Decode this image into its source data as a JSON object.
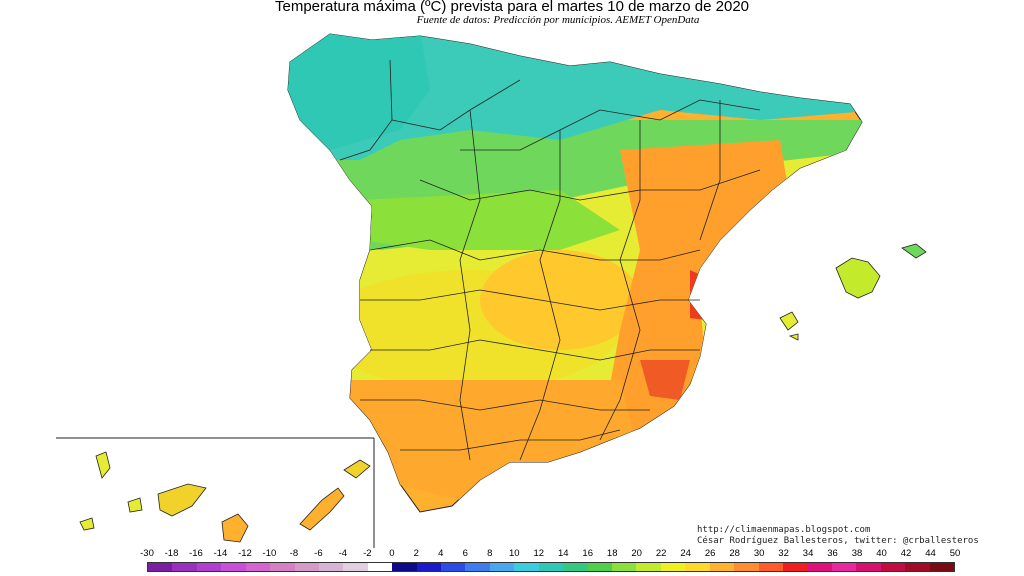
{
  "map": {
    "title": "Temperatura máxima (ºC) prevista para el martes 10 de marzo de 2020",
    "subtitle": "Fuente de datos: Predicción por municipios. AEMET OpenData",
    "credits": {
      "line1": "http://climaenmapas.blogspot.com",
      "line2": "César Rodríguez Ballesteros, twitter: @crballesteros"
    },
    "legend": {
      "labels": [
        "-30",
        "-18",
        "-16",
        "-14",
        "-12",
        "-10",
        "-8",
        "-6",
        "-4",
        "-2",
        "0",
        "2",
        "4",
        "6",
        "8",
        "10",
        "12",
        "14",
        "16",
        "18",
        "20",
        "22",
        "24",
        "26",
        "28",
        "30",
        "32",
        "34",
        "36",
        "38",
        "40",
        "42",
        "44",
        "50"
      ],
      "colors": [
        "#7a1fa2",
        "#9a2fc0",
        "#b23ed0",
        "#c84fd8",
        "#d464cf",
        "#d67fc4",
        "#d69ac8",
        "#d8b4d4",
        "#e2d0e2",
        "#ffffff",
        "#0a0a8a",
        "#1a1ac8",
        "#2c4ce8",
        "#3f7cf0",
        "#4aa8f0",
        "#3ccce0",
        "#2ec8b4",
        "#34c882",
        "#4ed04a",
        "#8ce03a",
        "#c4ea2c",
        "#eef020",
        "#ffd82a",
        "#ffb22e",
        "#ff8c2e",
        "#ff5a2a",
        "#f01e1e",
        "#e0107a",
        "#e82aa0",
        "#d81070",
        "#c00c40",
        "#a00c28",
        "#7a0a14"
      ]
    },
    "regions": {
      "north": "#3ccbb8",
      "north_west": "#4ed6b0",
      "north_green": "#6fd85c",
      "centre_yellow": "#e6ec34",
      "south_orange": "#ffb02e",
      "east_red": "#f03a1e"
    }
  }
}
